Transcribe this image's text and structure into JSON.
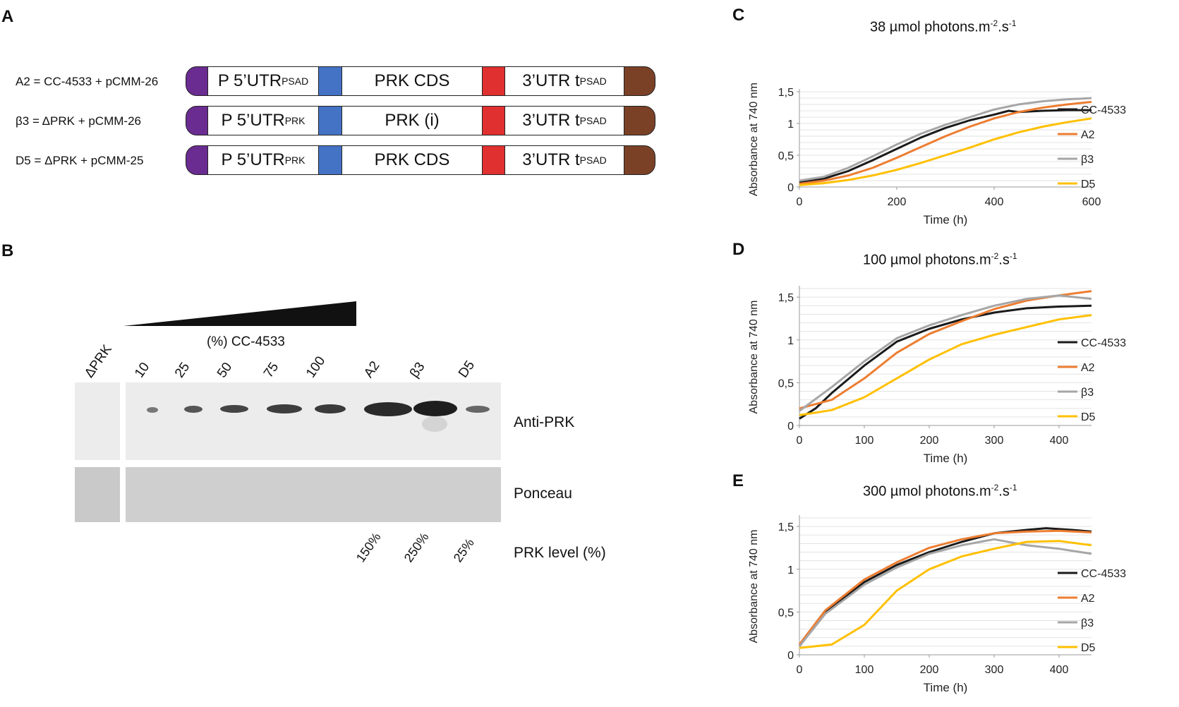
{
  "panels": {
    "a": "A",
    "b": "B",
    "c": "C",
    "d": "D",
    "e": "E"
  },
  "panel_a": {
    "constructs": [
      {
        "label": "A2 = CC-4533 + pCMM-26",
        "promoter": "P 5’UTR",
        "promoter_sub": "PSAD",
        "cds": "PRK CDS",
        "utr3": "3’UTR t",
        "utr3_sub": "PSAD"
      },
      {
        "label": "β3 = ΔPRK + pCMM-26",
        "promoter": "P 5’UTR",
        "promoter_sub": "PRK",
        "cds": "PRK (i)",
        "utr3": "3’UTR t",
        "utr3_sub": "PSAD"
      },
      {
        "label": "D5 = ΔPRK + pCMM-25",
        "promoter": "P 5’UTR",
        "promoter_sub": "PRK",
        "cds": "PRK CDS",
        "utr3": "3’UTR t",
        "utr3_sub": "PSAD"
      }
    ],
    "colors": {
      "start": "#6a2c91",
      "blue": "#4472c4",
      "red": "#e03030",
      "end": "#7b4127"
    }
  },
  "panel_b": {
    "gradient_label": "(%) CC-4533",
    "lanes": [
      "ΔPRK",
      "10",
      "25",
      "50",
      "75",
      "100",
      "A2",
      "β3",
      "D5"
    ],
    "anti_label": "Anti-PRK",
    "ponceau_label": "Ponceau",
    "prk_level_label": "PRK level (%)",
    "prk_levels": [
      "150%",
      "250%",
      "25%"
    ]
  },
  "chart_data": [
    {
      "type": "line",
      "title": "38 µmol photons.m",
      "title_sup1": "-2",
      "title_mid": ".s",
      "title_sup2": "-1",
      "xlabel": "Time (h)",
      "ylabel": "Absorbance at 740 nm",
      "xlim": [
        0,
        600
      ],
      "ylim": [
        0,
        1.5
      ],
      "xticks": [
        "0",
        "200",
        "400",
        "600"
      ],
      "yticks": [
        "0",
        "0,5",
        "1",
        "1,5"
      ],
      "series": [
        {
          "name": "CC-4533",
          "color": "#1a1a1a",
          "x": [
            0,
            50,
            100,
            150,
            200,
            250,
            300,
            350,
            400,
            430,
            450,
            500,
            550,
            600
          ],
          "y": [
            0.07,
            0.13,
            0.25,
            0.42,
            0.6,
            0.78,
            0.93,
            1.05,
            1.14,
            1.2,
            1.18,
            1.2,
            1.21,
            1.21
          ]
        },
        {
          "name": "A2",
          "color": "#ed7d31",
          "x": [
            0,
            50,
            100,
            150,
            200,
            250,
            300,
            350,
            400,
            450,
            500,
            550,
            600
          ],
          "y": [
            0.05,
            0.1,
            0.18,
            0.3,
            0.46,
            0.63,
            0.8,
            0.95,
            1.08,
            1.18,
            1.25,
            1.3,
            1.34
          ]
        },
        {
          "name": "β3",
          "color": "#a6a6a6",
          "x": [
            0,
            50,
            100,
            150,
            200,
            250,
            300,
            350,
            400,
            450,
            500,
            550,
            600
          ],
          "y": [
            0.1,
            0.16,
            0.3,
            0.48,
            0.67,
            0.84,
            0.98,
            1.1,
            1.22,
            1.3,
            1.35,
            1.38,
            1.4
          ]
        },
        {
          "name": "D5",
          "color": "#ffc000",
          "x": [
            0,
            50,
            100,
            150,
            200,
            250,
            300,
            350,
            400,
            450,
            500,
            550,
            600
          ],
          "y": [
            0.03,
            0.06,
            0.11,
            0.18,
            0.27,
            0.38,
            0.5,
            0.62,
            0.75,
            0.86,
            0.95,
            1.02,
            1.08
          ]
        }
      ]
    },
    {
      "type": "line",
      "title": "100 µmol photons.m",
      "title_sup1": "-2",
      "title_mid": ".s",
      "title_sup2": "-1",
      "xlabel": "Time (h)",
      "ylabel": "Absorbance at 740 nm",
      "xlim": [
        0,
        450
      ],
      "ylim": [
        0,
        1.6
      ],
      "xticks": [
        "0",
        "100",
        "200",
        "300",
        "400"
      ],
      "yticks": [
        "0",
        "0,5",
        "1",
        "1,5"
      ],
      "series": [
        {
          "name": "CC-4533",
          "color": "#1a1a1a",
          "x": [
            0,
            25,
            50,
            100,
            150,
            200,
            250,
            300,
            350,
            400,
            450
          ],
          "y": [
            0.08,
            0.2,
            0.38,
            0.7,
            0.98,
            1.13,
            1.24,
            1.32,
            1.37,
            1.39,
            1.4
          ]
        },
        {
          "name": "A2",
          "color": "#ed7d31",
          "x": [
            0,
            50,
            100,
            150,
            200,
            250,
            300,
            350,
            400,
            450
          ],
          "y": [
            0.2,
            0.3,
            0.55,
            0.85,
            1.07,
            1.22,
            1.36,
            1.46,
            1.52,
            1.57
          ]
        },
        {
          "name": "β3",
          "color": "#a6a6a6",
          "x": [
            0,
            50,
            100,
            150,
            200,
            250,
            300,
            350,
            400,
            450
          ],
          "y": [
            0.17,
            0.45,
            0.75,
            1.02,
            1.17,
            1.29,
            1.4,
            1.48,
            1.52,
            1.48
          ]
        },
        {
          "name": "D5",
          "color": "#ffc000",
          "x": [
            0,
            50,
            100,
            150,
            200,
            250,
            300,
            350,
            400,
            450
          ],
          "y": [
            0.12,
            0.18,
            0.33,
            0.55,
            0.77,
            0.95,
            1.06,
            1.15,
            1.24,
            1.29
          ]
        }
      ]
    },
    {
      "type": "line",
      "title": "300 µmol photons.m",
      "title_sup1": "-2",
      "title_mid": ".s",
      "title_sup2": "-1",
      "xlabel": "Time (h)",
      "ylabel": "Absorbance at 740 nm",
      "xlim": [
        0,
        450
      ],
      "ylim": [
        0,
        1.6
      ],
      "xticks": [
        "0",
        "100",
        "200",
        "300",
        "400"
      ],
      "yticks": [
        "0",
        "0,5",
        "1",
        "1,5"
      ],
      "series": [
        {
          "name": "CC-4533",
          "color": "#1a1a1a",
          "x": [
            0,
            40,
            100,
            150,
            200,
            250,
            300,
            350,
            380,
            420,
            450
          ],
          "y": [
            0.1,
            0.5,
            0.85,
            1.05,
            1.2,
            1.32,
            1.42,
            1.46,
            1.48,
            1.46,
            1.44
          ]
        },
        {
          "name": "A2",
          "color": "#ed7d31",
          "x": [
            0,
            40,
            100,
            150,
            200,
            250,
            300,
            350,
            400,
            450
          ],
          "y": [
            0.12,
            0.52,
            0.88,
            1.08,
            1.25,
            1.35,
            1.42,
            1.44,
            1.45,
            1.43
          ]
        },
        {
          "name": "β3",
          "color": "#a6a6a6",
          "x": [
            0,
            40,
            100,
            150,
            200,
            250,
            300,
            350,
            400,
            450
          ],
          "y": [
            0.1,
            0.48,
            0.82,
            1.02,
            1.18,
            1.28,
            1.35,
            1.28,
            1.24,
            1.18
          ]
        },
        {
          "name": "D5",
          "color": "#ffc000",
          "x": [
            0,
            50,
            100,
            150,
            200,
            250,
            300,
            350,
            400,
            450
          ],
          "y": [
            0.08,
            0.12,
            0.35,
            0.75,
            1.0,
            1.15,
            1.24,
            1.32,
            1.33,
            1.28
          ]
        }
      ]
    }
  ]
}
